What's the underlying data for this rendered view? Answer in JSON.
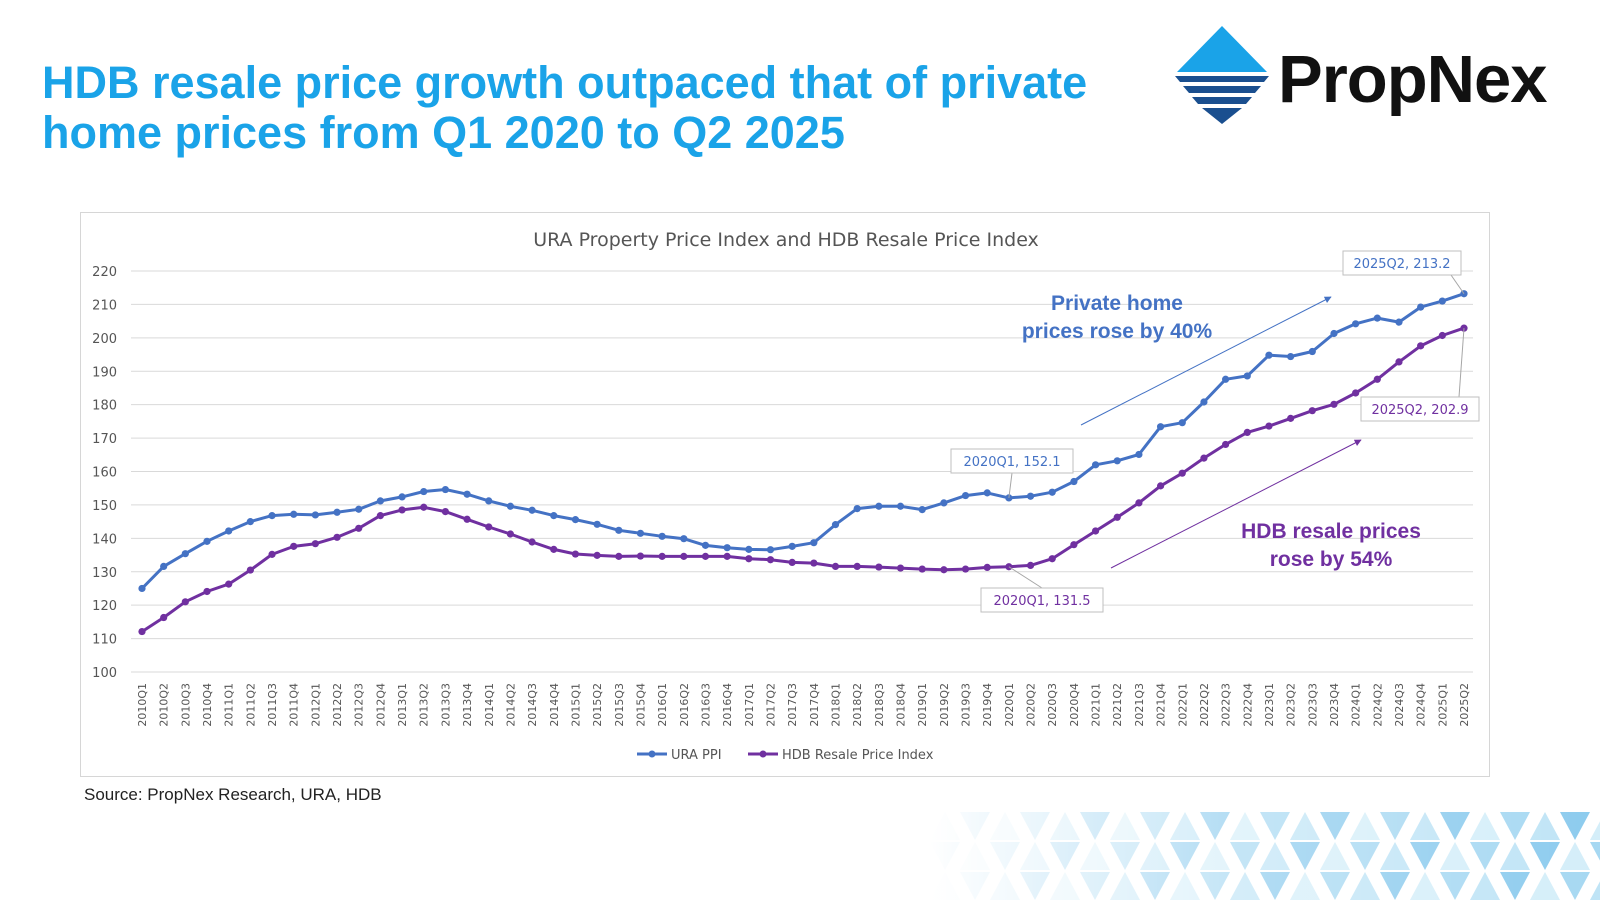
{
  "slide": {
    "title_line1": "HDB resale price growth outpaced that of private",
    "title_line2": "home prices from Q1 2020 to Q2 2025",
    "source": "Source: PropNex Research, URA, HDB"
  },
  "logo": {
    "wordmark": "PropNex",
    "icon": "propnex-diamond-logo"
  },
  "colors": {
    "title": "#1aa3e8",
    "ura": "#4472c4",
    "hdb": "#7030a0",
    "grid": "#d9d9d9"
  },
  "chart_data": {
    "type": "line",
    "title": "URA Property Price Index and HDB Resale Price Index",
    "xlabel": "",
    "ylabel": "",
    "ylim": [
      100,
      220
    ],
    "yticks": [
      100,
      110,
      120,
      130,
      140,
      150,
      160,
      170,
      180,
      190,
      200,
      210,
      220
    ],
    "grid": true,
    "legend_position": "bottom",
    "categories": [
      "2010Q1",
      "2010Q2",
      "2010Q3",
      "2010Q4",
      "2011Q1",
      "2011Q2",
      "2011Q3",
      "2011Q4",
      "2012Q1",
      "2012Q2",
      "2012Q3",
      "2012Q4",
      "2013Q1",
      "2013Q2",
      "2013Q3",
      "2013Q4",
      "2014Q1",
      "2014Q2",
      "2014Q3",
      "2014Q4",
      "2015Q1",
      "2015Q2",
      "2015Q3",
      "2015Q4",
      "2016Q1",
      "2016Q2",
      "2016Q3",
      "2016Q4",
      "2017Q1",
      "2017Q2",
      "2017Q3",
      "2017Q4",
      "2018Q1",
      "2018Q2",
      "2018Q3",
      "2018Q4",
      "2019Q1",
      "2019Q2",
      "2019Q3",
      "2019Q4",
      "2020Q1",
      "2020Q2",
      "2020Q3",
      "2020Q4",
      "2021Q1",
      "2021Q2",
      "2021Q3",
      "2021Q4",
      "2022Q1",
      "2022Q2",
      "2022Q3",
      "2022Q4",
      "2023Q1",
      "2023Q2",
      "2023Q3",
      "2023Q4",
      "2024Q1",
      "2024Q2",
      "2024Q3",
      "2024Q4",
      "2025Q1",
      "2025Q2"
    ],
    "series": [
      {
        "name": "URA PPI",
        "color": "#4472c4",
        "values": [
          125.0,
          131.6,
          135.4,
          139.1,
          142.2,
          145.0,
          146.8,
          147.2,
          147.0,
          147.8,
          148.7,
          151.2,
          152.4,
          154.0,
          154.6,
          153.2,
          151.2,
          149.6,
          148.4,
          146.8,
          145.6,
          144.2,
          142.4,
          141.5,
          140.6,
          139.9,
          137.9,
          137.2,
          136.7,
          136.6,
          137.6,
          138.7,
          144.1,
          148.9,
          149.6,
          149.6,
          148.6,
          150.6,
          152.8,
          153.6,
          152.1,
          152.6,
          153.8,
          157.0,
          162.0,
          163.2,
          165.1,
          173.4,
          174.6,
          180.8,
          187.6,
          188.6,
          194.8,
          194.4,
          195.9,
          201.3,
          204.2,
          205.9,
          204.7,
          209.2,
          211.0,
          213.2
        ]
      },
      {
        "name": "HDB Resale Price Index",
        "color": "#7030a0",
        "values": [
          112.1,
          116.3,
          121.0,
          124.1,
          126.3,
          130.5,
          135.2,
          137.6,
          138.4,
          140.3,
          143.0,
          146.8,
          148.5,
          149.3,
          148.0,
          145.7,
          143.4,
          141.3,
          138.9,
          136.7,
          135.3,
          134.9,
          134.6,
          134.7,
          134.6,
          134.6,
          134.6,
          134.6,
          133.9,
          133.6,
          132.8,
          132.6,
          131.6,
          131.6,
          131.4,
          131.1,
          130.8,
          130.6,
          130.8,
          131.3,
          131.5,
          131.9,
          133.9,
          138.1,
          142.2,
          146.3,
          150.6,
          155.7,
          159.5,
          164.0,
          168.1,
          171.7,
          173.6,
          175.9,
          178.2,
          180.1,
          183.5,
          187.6,
          192.8,
          197.6,
          200.7,
          202.9
        ]
      }
    ],
    "annotations": [
      {
        "text": "2025Q2, 213.2",
        "series": 0,
        "category": "2025Q2"
      },
      {
        "text": "2025Q2, 202.9",
        "series": 1,
        "category": "2025Q2"
      },
      {
        "text": "2020Q1, 152.1",
        "series": 0,
        "category": "2020Q1"
      },
      {
        "text": "2020Q1, 131.5",
        "series": 1,
        "category": "2020Q1"
      }
    ],
    "callouts": [
      {
        "line1": "Private home",
        "line2": "prices rose by 40%",
        "color": "#4472c4"
      },
      {
        "line1": "HDB resale prices",
        "line2": "rose by 54%",
        "color": "#7030a0"
      }
    ]
  }
}
